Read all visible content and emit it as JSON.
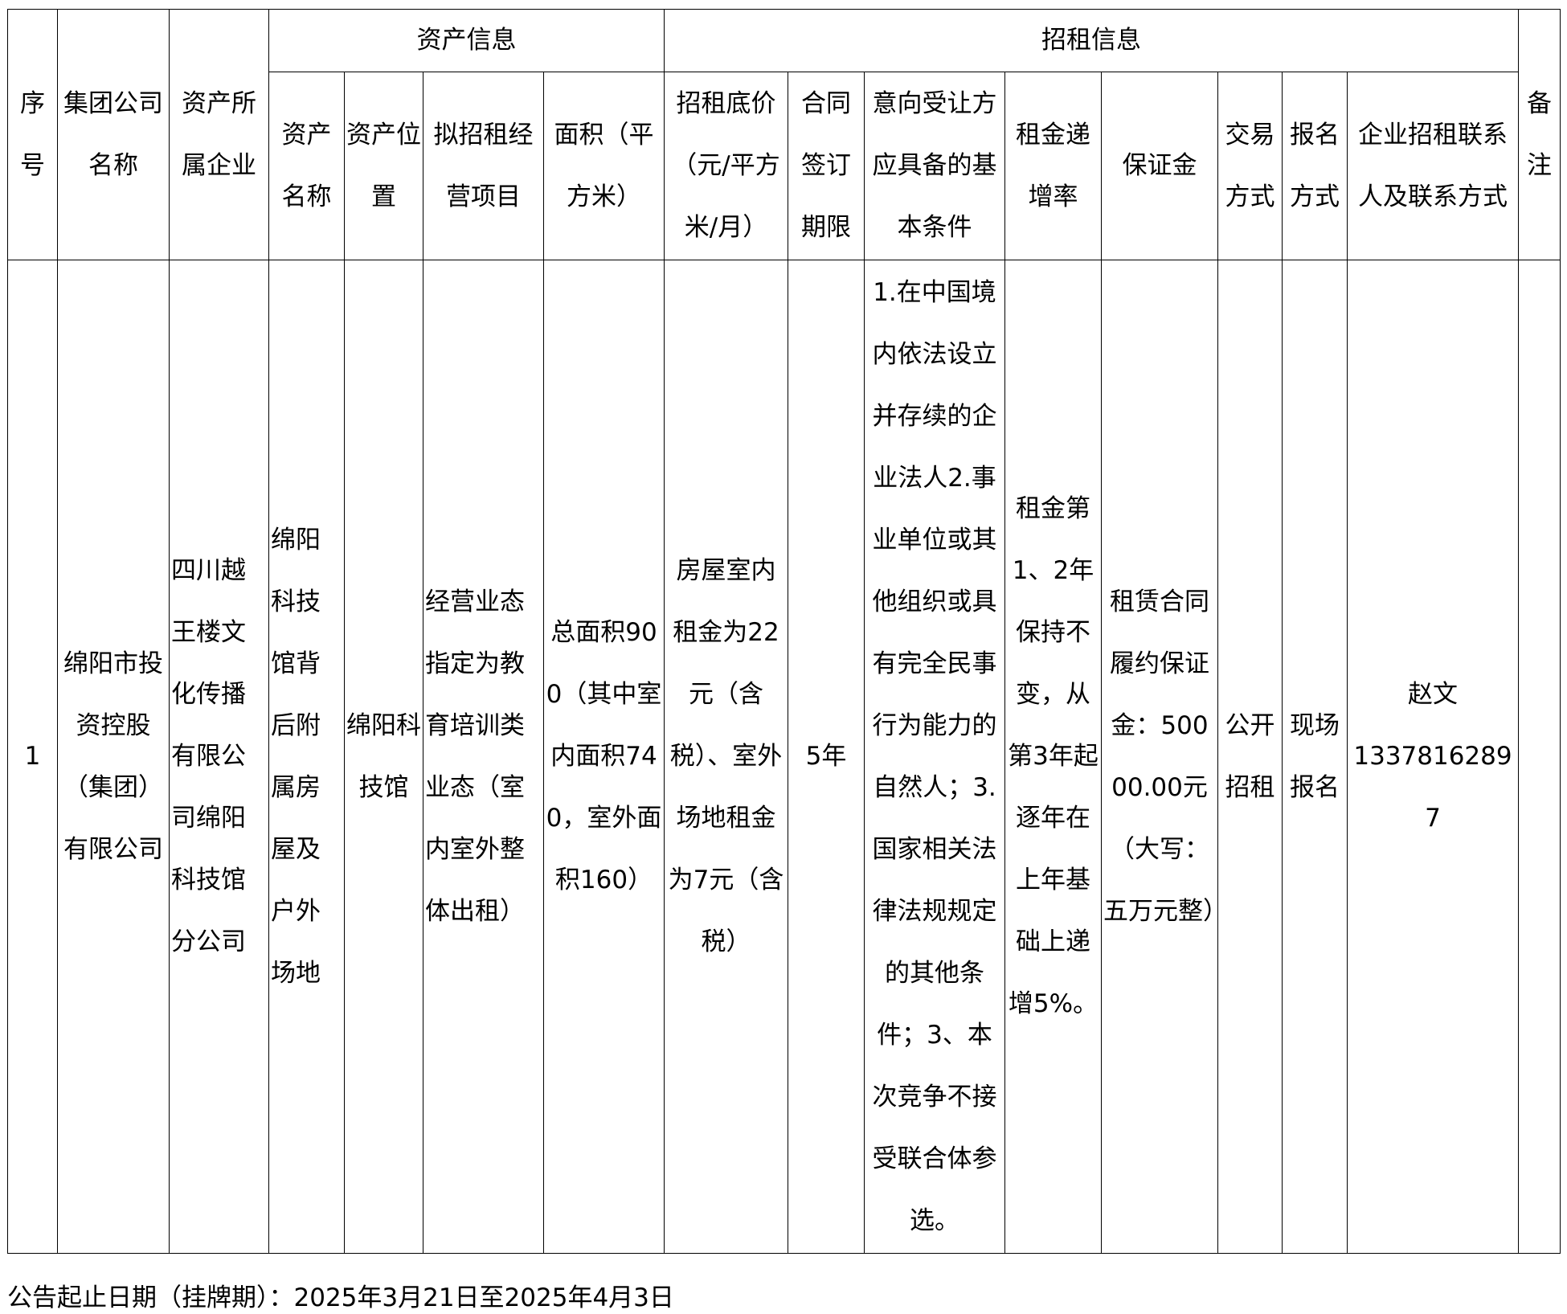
{
  "headers": {
    "seq": "序号",
    "group_company": "集团公司名称",
    "asset_owner": "资产所属企业",
    "asset_info": "资产信息",
    "asset_name": "资产名称",
    "asset_location": "资产位置",
    "planned_business": "拟招租经营项目",
    "area": "面积（平方米）",
    "lease_info": "招租信息",
    "base_price": "招租底价（元/平方米/月）",
    "contract_term": "合同签订期限",
    "requirements": "意向受让方应具备的基本条件",
    "rent_increase": "租金递增率",
    "deposit": "保证金",
    "transaction_method": "交易方式",
    "registration_method": "报名方式",
    "contact": "企业招租联系人及联系方式",
    "remarks": "备注"
  },
  "rows": [
    {
      "seq": "1",
      "group_company": "绵阳市投资控股（集团）有限公司",
      "asset_owner": "四川越王楼文化传播有限公司绵阳科技馆分公司",
      "asset_name": "绵阳科技馆背后附属房屋及户外场地",
      "asset_location": "绵阳科技馆",
      "planned_business": "经营业态指定为教育培训类业态（室内室外整体出租）",
      "area": "总面积900（其中室内面积740，室外面积160）",
      "base_price": "房屋室内租金为22元（含税）、室外场地租金为7元（含税）",
      "contract_term": "5年",
      "requirements": "1.在中国境内依法设立并存续的企业法人2.事业单位或其他组织或具有完全民事行为能力的自然人；3.国家相关法律法规规定的其他条件；3、本次竞争不接受联合体参选。",
      "rent_increase": "租金第1、2年保持不变，从第3年起逐年在上年基础上递增5%。",
      "deposit": "租赁合同履约保证金：50000.00元（大写：五万元整）",
      "transaction_method": "公开招租",
      "registration_method": "现场报名",
      "contact_name": "赵文",
      "contact_phone": "13378162897",
      "remarks": ""
    }
  ],
  "footer": "公告起止日期（挂牌期）：2025年3月21日至2025年4月3日"
}
